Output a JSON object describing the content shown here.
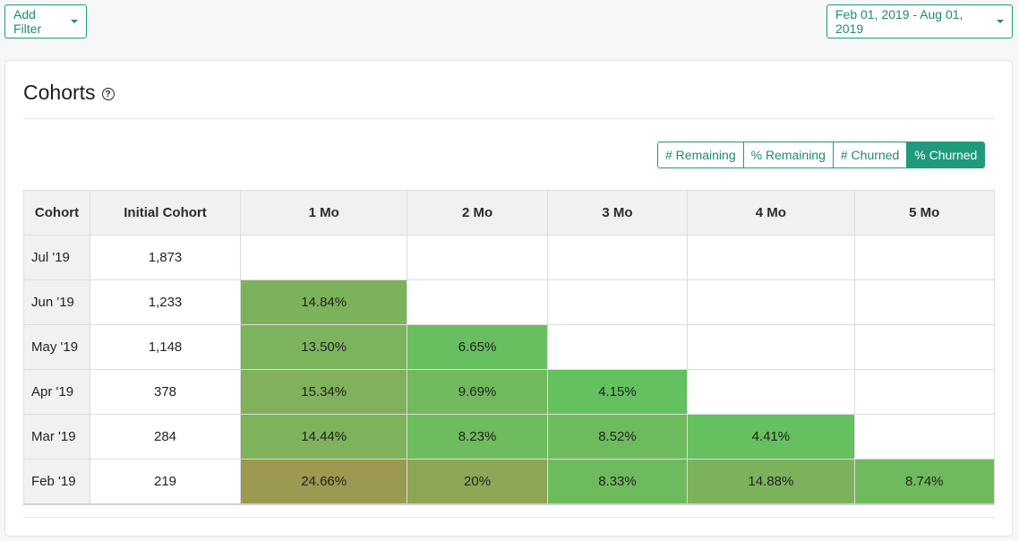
{
  "toolbar": {
    "add_filter_label": "Add Filter",
    "date_range_label": "Feb 01, 2019 - Aug 01, 2019"
  },
  "card": {
    "title": "Cohorts",
    "help_glyph": "?"
  },
  "view_toggle": {
    "options": [
      "# Remaining",
      "% Remaining",
      "# Churned",
      "% Churned"
    ],
    "active": "% Churned"
  },
  "table": {
    "headers": [
      "Cohort",
      "Initial Cohort",
      "1 Mo",
      "2 Mo",
      "3 Mo",
      "4 Mo",
      "5 Mo"
    ],
    "rows": [
      {
        "cohort": "Jul '19",
        "initial": "1,873",
        "cells": [
          "",
          "",
          "",
          "",
          ""
        ]
      },
      {
        "cohort": "Jun '19",
        "initial": "1,233",
        "cells": [
          "14.84%",
          "",
          "",
          "",
          ""
        ]
      },
      {
        "cohort": "May '19",
        "initial": "1,148",
        "cells": [
          "13.50%",
          "6.65%",
          "",
          "",
          ""
        ]
      },
      {
        "cohort": "Apr '19",
        "initial": "378",
        "cells": [
          "15.34%",
          "9.69%",
          "4.15%",
          "",
          ""
        ]
      },
      {
        "cohort": "Mar '19",
        "initial": "284",
        "cells": [
          "14.44%",
          "8.23%",
          "8.52%",
          "4.41%",
          ""
        ]
      },
      {
        "cohort": "Feb '19",
        "initial": "219",
        "cells": [
          "24.66%",
          "20%",
          "8.33%",
          "14.88%",
          "8.74%"
        ]
      }
    ],
    "cell_colors": [
      [
        "",
        "",
        "",
        "",
        ""
      ],
      [
        "#7db25c",
        "",
        "",
        "",
        ""
      ],
      [
        "#7bb45d",
        "#68bf5f",
        "",
        "",
        ""
      ],
      [
        "#81b15a",
        "#71b95d",
        "#64c15f",
        "",
        ""
      ],
      [
        "#7eb25b",
        "#6dbc5e",
        "#6ebb5e",
        "#65c05f",
        ""
      ],
      [
        "#9b9a50",
        "#8ca656",
        "#6ebb5e",
        "#7db25c",
        "#6fba5d"
      ]
    ]
  },
  "colors": {
    "accent": "#1f9a7c"
  }
}
